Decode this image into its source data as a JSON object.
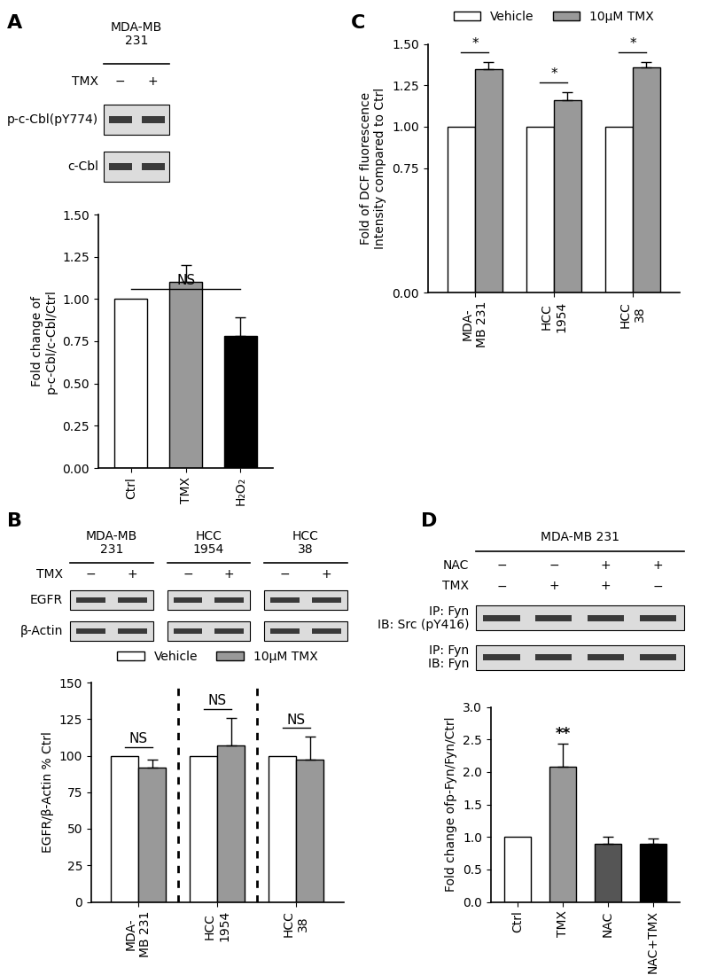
{
  "chart_data": [
    {
      "panel": "A",
      "type": "bar",
      "categories": [
        "Ctrl",
        "TMX",
        "H₂O₂"
      ],
      "values": [
        1.0,
        1.1,
        0.78
      ],
      "errors": [
        0,
        0.1,
        0.11
      ],
      "colors": [
        "#ffffff",
        "#999999",
        "#000000"
      ],
      "ylabel": "Fold change of\np-c-Cbl/c-Cbl/Ctrl",
      "ylim": [
        0,
        1.5
      ],
      "yticks": [
        {
          "value": 0,
          "label": "0.00"
        },
        {
          "value": 0.25,
          "label": "0.25"
        },
        {
          "value": 0.5,
          "label": "0.50"
        },
        {
          "value": 0.75,
          "label": "0.75"
        },
        {
          "value": 1.0,
          "label": "1.00"
        },
        {
          "value": 1.25,
          "label": "1.25"
        },
        {
          "value": 1.5,
          "label": "1.50"
        }
      ],
      "annotations": [
        {
          "text": "NS",
          "categories": [
            "Ctrl",
            "H₂O₂"
          ]
        }
      ]
    },
    {
      "panel": "B",
      "type": "bar",
      "categories": [
        "MDA-\nMB 231",
        "HCC\n1954",
        "HCC\n38"
      ],
      "series": [
        {
          "name": "Vehicle",
          "color": "#ffffff",
          "values": [
            100,
            100,
            100
          ],
          "errors": [
            0,
            0,
            0
          ]
        },
        {
          "name": "10μM TMX",
          "color": "#999999",
          "values": [
            92,
            107,
            97
          ],
          "errors": [
            5,
            19,
            16
          ]
        }
      ],
      "ylabel": "EGFR/β-Actin % Ctrl",
      "ylim": [
        0,
        150
      ],
      "yticks": [
        0,
        25,
        50,
        75,
        100,
        125,
        150
      ],
      "legend": "top",
      "annotations": [
        {
          "text": "NS",
          "categories": [
            "MDA-\nMB 231"
          ]
        },
        {
          "text": "NS",
          "categories": [
            "HCC\n1954"
          ]
        },
        {
          "text": "NS",
          "categories": [
            "HCC\n38"
          ]
        }
      ]
    },
    {
      "panel": "C",
      "type": "bar",
      "categories": [
        "MDA-\nMB 231",
        "HCC\n1954",
        "HCC\n38"
      ],
      "series": [
        {
          "name": "Vehicle",
          "color": "#ffffff",
          "values": [
            1.0,
            1.0,
            1.0
          ],
          "errors": [
            0,
            0,
            0
          ]
        },
        {
          "name": "10μM TMX",
          "color": "#999999",
          "values": [
            1.35,
            1.16,
            1.36
          ],
          "errors": [
            0.04,
            0.05,
            0.03
          ]
        }
      ],
      "ylabel": "Fold of DCF fluorescence\nIntensity compared to Ctrl",
      "ylim": [
        0,
        1.5
      ],
      "yticks": [
        {
          "value": 0,
          "label": "0.00"
        },
        {
          "value": 0.75,
          "label": "0.75"
        },
        {
          "value": 1.0,
          "label": "1.00"
        },
        {
          "value": 1.25,
          "label": "1.25"
        },
        {
          "value": 1.5,
          "label": "1.50"
        }
      ],
      "legend": "top",
      "annotations": [
        {
          "text": "*",
          "categories": [
            "MDA-\nMB 231"
          ]
        },
        {
          "text": "*",
          "categories": [
            "HCC\n1954"
          ]
        },
        {
          "text": "*",
          "categories": [
            "HCC\n38"
          ]
        }
      ]
    },
    {
      "panel": "D",
      "type": "bar",
      "categories": [
        "Ctrl",
        "TMX",
        "NAC",
        "NAC+TMX"
      ],
      "values": [
        1.0,
        2.08,
        0.89,
        0.89
      ],
      "errors": [
        0,
        0.35,
        0.11,
        0.08
      ],
      "colors": [
        "#ffffff",
        "#999999",
        "#555555",
        "#000000"
      ],
      "ylabel": "Fold change ofp-Fyn/Fyn/Ctrl",
      "ylim": [
        0,
        3.0
      ],
      "yticks": [
        {
          "value": 0,
          "label": "0.0"
        },
        {
          "value": 0.5,
          "label": "0.5"
        },
        {
          "value": 1.0,
          "label": "1.0"
        },
        {
          "value": 1.5,
          "label": "1.5"
        },
        {
          "value": 2.0,
          "label": "2.0"
        },
        {
          "value": 2.5,
          "label": "2.5"
        },
        {
          "value": 3.0,
          "label": "3.0"
        }
      ],
      "annotations": [
        {
          "text": "**",
          "categories": [
            "TMX"
          ]
        }
      ]
    }
  ],
  "blots": [
    {
      "groups": [
        "MDA-MB\n231"
      ],
      "conditions": [
        {
          "name": "TMX",
          "signs": [
            "−",
            "+"
          ]
        }
      ],
      "rows": [
        "p-c-Cbl(pY774)",
        "c-Cbl"
      ]
    },
    {
      "groups": [
        "MDA-MB\n231",
        "HCC\n1954",
        "HCC\n38"
      ],
      "conditions": [
        {
          "name": "TMX",
          "signs": [
            "−",
            "+",
            "−",
            "+",
            "−",
            "+"
          ]
        }
      ],
      "rows": [
        "EGFR",
        "β-Actin"
      ]
    },
    {
      "groups": [
        "MDA-MB 231"
      ],
      "conditions": [
        {
          "name": "NAC",
          "signs": [
            "−",
            "−",
            "+",
            "+"
          ]
        },
        {
          "name": "TMX",
          "signs": [
            "−",
            "+",
            "+",
            "−"
          ]
        }
      ],
      "rows": [
        "IP: Fyn\nIB: Src (pY416)",
        "IP: Fyn\nIB: Fyn"
      ]
    }
  ]
}
